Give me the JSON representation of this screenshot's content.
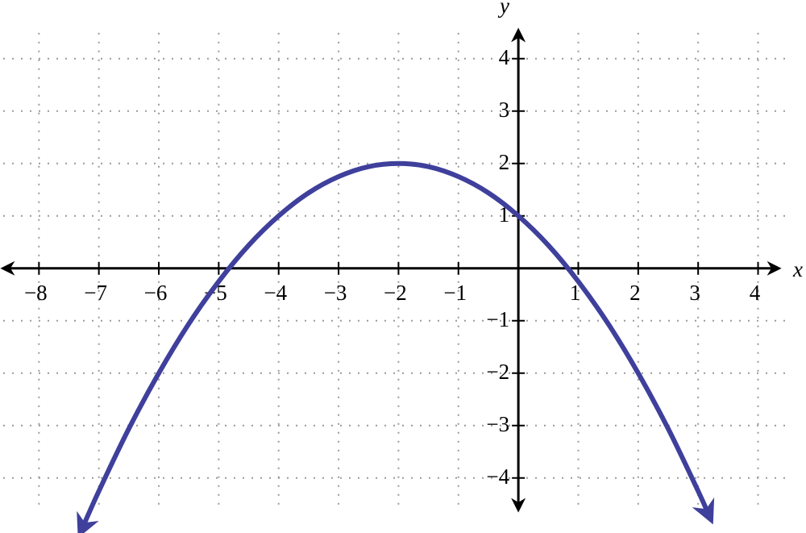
{
  "chart_data": {
    "type": "line",
    "x_label": "x",
    "y_label": "y",
    "x": [
      -7.3,
      -7,
      -6.5,
      -6,
      -5.5,
      -5,
      -4.5,
      -4,
      -3.5,
      -3,
      -2.5,
      -2,
      -1.5,
      -1,
      -0.5,
      0,
      0.5,
      1,
      1.5,
      2,
      2.5,
      3,
      3.2
    ],
    "series": [
      {
        "color": "#3f3f9c",
        "values": [
          -5.02,
          -4.25,
          -3.06,
          -2,
          -1.06,
          -0.25,
          0.44,
          1,
          1.44,
          1.75,
          1.94,
          2,
          1.94,
          1.75,
          1.44,
          1,
          0.44,
          -0.25,
          -1.06,
          -2,
          -3.06,
          -4.25,
          -4.76
        ]
      }
    ],
    "xlim": [
      -8.65,
      4.8
    ],
    "ylim": [
      -5.05,
      5.12
    ],
    "xticks": [
      {
        "value": -8,
        "label": "−8"
      },
      {
        "value": -7,
        "label": "−7"
      },
      {
        "value": -6,
        "label": "−6"
      },
      {
        "value": -5,
        "label": "−5"
      },
      {
        "value": -4,
        "label": "−4"
      },
      {
        "value": -3,
        "label": "−3"
      },
      {
        "value": -2,
        "label": "−2"
      },
      {
        "value": -1,
        "label": "−1"
      },
      1,
      2,
      3,
      4
    ],
    "yticks": [
      {
        "value": -4,
        "label": "−4"
      },
      {
        "value": -3,
        "label": "−3"
      },
      {
        "value": -2,
        "label": "−2"
      },
      {
        "value": -1,
        "label": "−1"
      },
      1,
      2,
      3,
      4
    ],
    "grid": true
  }
}
